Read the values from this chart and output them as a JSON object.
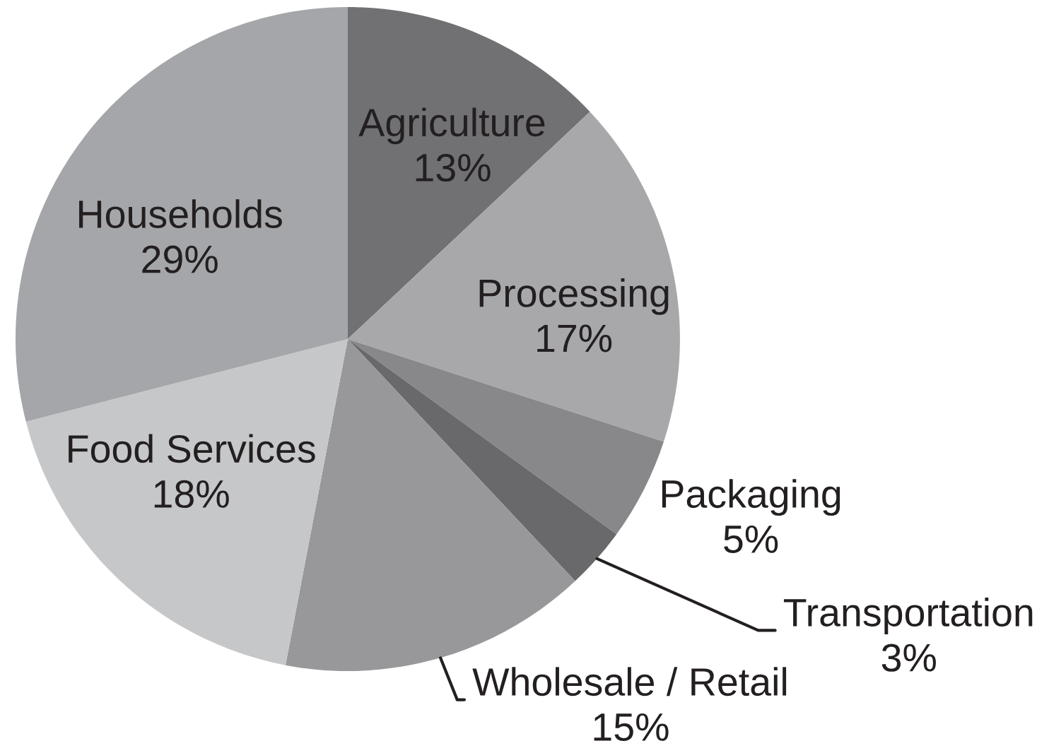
{
  "chart_data": {
    "type": "pie",
    "categories": [
      "Agriculture",
      "Processing",
      "Packaging",
      "Transportation",
      "Wholesale / Retail",
      "Food Services",
      "Households"
    ],
    "values": [
      13,
      17,
      5,
      3,
      15,
      18,
      29
    ],
    "value_labels": [
      "13%",
      "17%",
      "5%",
      "3%",
      "15%",
      "18%",
      "29%"
    ],
    "colors": [
      "#717174",
      "#a8a8ab",
      "#88888b",
      "#69696b",
      "#98989b",
      "#c6c7c9",
      "#a5a6a9"
    ]
  }
}
